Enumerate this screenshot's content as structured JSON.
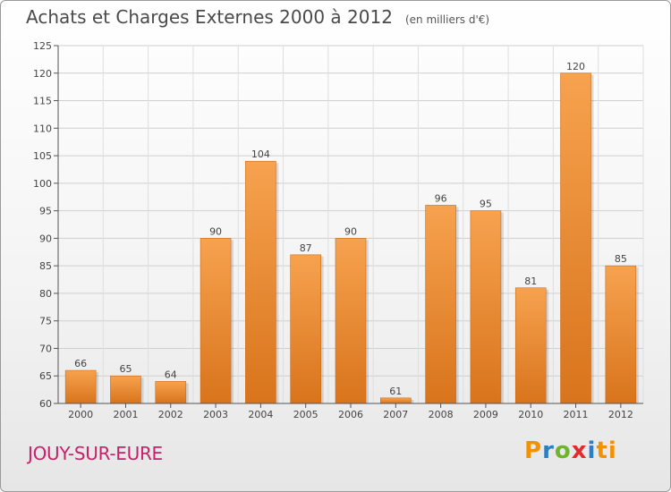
{
  "title": "Achats et Charges Externes 2000 à 2012",
  "unit": "(en milliers d'€)",
  "commune": "JOUY-SUR-EURE",
  "logo": {
    "text": "Proxiti",
    "letters": [
      "P",
      "r",
      "o",
      "x",
      "i",
      "ti"
    ]
  },
  "colors": {
    "bar_light": "#f7a24f",
    "bar_dark": "#d8741c",
    "commune": "#c8206a"
  },
  "chart_data": {
    "type": "bar",
    "categories": [
      "2000",
      "2001",
      "2002",
      "2003",
      "2004",
      "2005",
      "2006",
      "2007",
      "2008",
      "2009",
      "2010",
      "2011",
      "2012"
    ],
    "values": [
      66,
      65,
      64,
      90,
      104,
      87,
      90,
      61,
      96,
      95,
      81,
      120,
      85
    ],
    "data_labels": [
      "66",
      "65",
      "64",
      "90",
      "104",
      "87",
      "90",
      "61",
      "96",
      "95",
      "81",
      "120",
      "85"
    ],
    "ylim": [
      60,
      125
    ],
    "yticks": [
      60,
      65,
      70,
      75,
      80,
      85,
      90,
      95,
      100,
      105,
      110,
      115,
      120,
      125
    ],
    "grid": true,
    "xlabel": "",
    "ylabel": ""
  }
}
